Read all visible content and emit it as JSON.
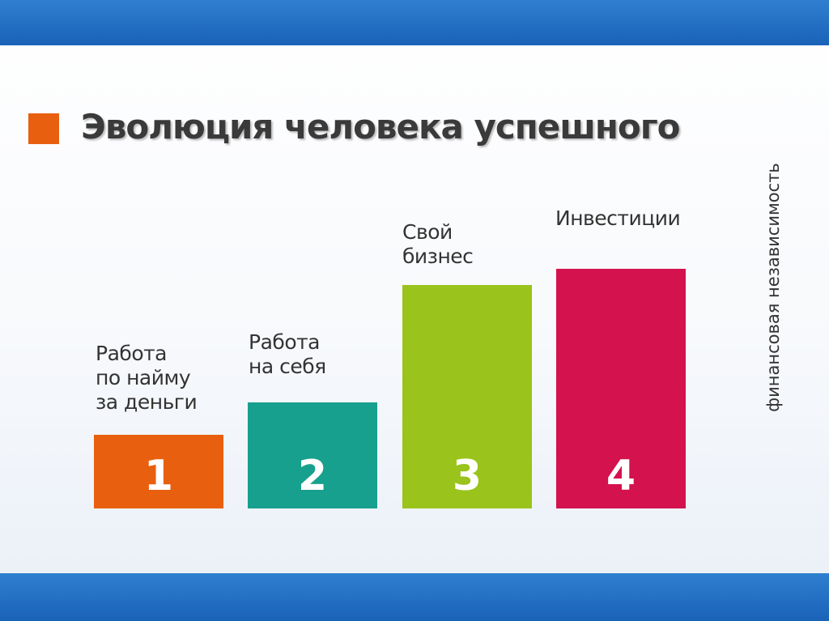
{
  "header": {
    "title": "Эволюция человека успешного"
  },
  "steps": [
    {
      "number": "1",
      "label": [
        "Работа",
        "по найму",
        "за деньги"
      ]
    },
    {
      "number": "2",
      "label": [
        "Работа",
        "на себя"
      ]
    },
    {
      "number": "3",
      "label": [
        "Свой",
        "бизнес"
      ]
    },
    {
      "number": "4",
      "label": [
        "Инвестиции"
      ]
    }
  ],
  "side_note": "финансовая независимость"
}
